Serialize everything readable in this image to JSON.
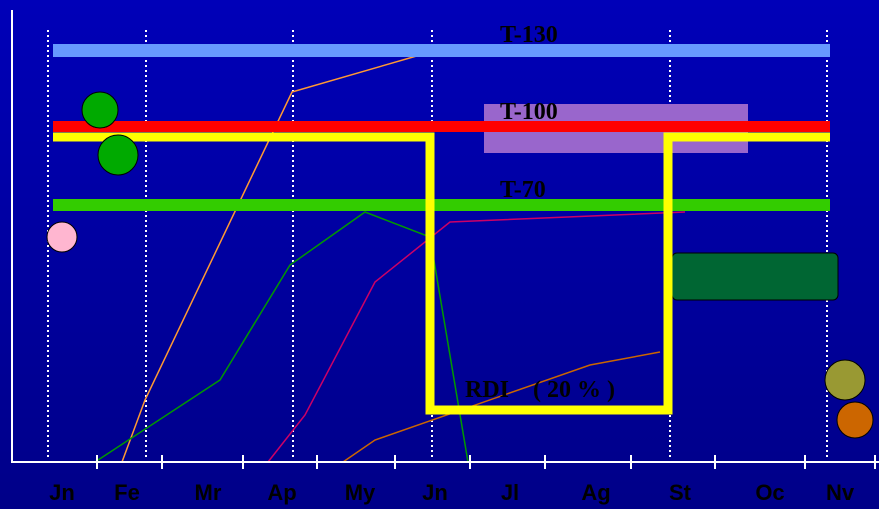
{
  "labels": {
    "t130": "T-130",
    "t100": "T-100",
    "t70": "T-70",
    "rdi": "RDI    ( 20 % )"
  },
  "months": [
    "Jn",
    "Fe",
    "Mr",
    "Ap",
    "My",
    "Jn",
    "Jl",
    "Ag",
    "St",
    "Oc",
    "Nv"
  ]
}
